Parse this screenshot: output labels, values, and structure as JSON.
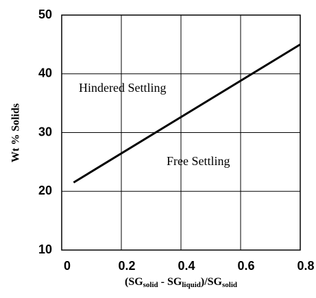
{
  "chart_data": {
    "type": "line",
    "xlabel": [
      {
        "text": "(SG"
      },
      {
        "text": "solid",
        "sub": true
      },
      {
        "text": " - SG"
      },
      {
        "text": "liquid",
        "sub": true
      },
      {
        "text": ")/SG"
      },
      {
        "text": "solid",
        "sub": true
      }
    ],
    "ylabel": "Wt % Solids",
    "annotations": [
      "Hindered Settling",
      "Free Settling"
    ],
    "series": [
      {
        "color": "#000000",
        "x": [
          0.04,
          0.8
        ],
        "values": [
          21.5,
          45
        ]
      }
    ],
    "xlim": [
      0,
      0.8
    ],
    "xticks": [
      0,
      0.2,
      0.4,
      0.6,
      0.8
    ],
    "ylim": [
      10,
      50
    ],
    "yticks": [
      10,
      20,
      30,
      40,
      50
    ],
    "grid": true
  }
}
